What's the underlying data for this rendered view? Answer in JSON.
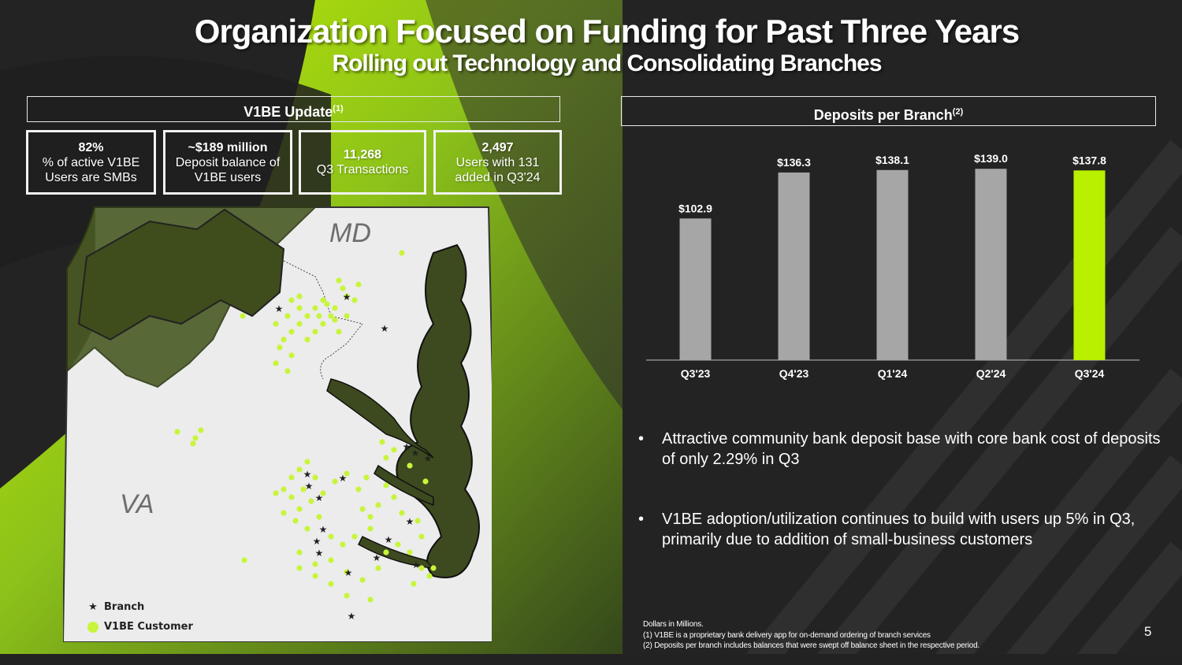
{
  "title": "Organization Focused on Funding for Past Three Years",
  "subtitle": "Rolling out Technology and Consolidating Branches",
  "left_header": {
    "label": "V1BE Update",
    "sup": "(1)"
  },
  "right_header": {
    "label": "Deposits per Branch",
    "sup": "(2)"
  },
  "stats": [
    {
      "value": "82%",
      "line1": "% of active V1BE",
      "line2": "Users are SMBs"
    },
    {
      "value": "~$189 million",
      "line1": "Deposit balance of",
      "line2": "V1BE users"
    },
    {
      "value": "11,268",
      "line1": "Q3 Transactions",
      "line2": ""
    },
    {
      "value": "2,497",
      "line1": "Users with 131",
      "line2": "added in Q3'24"
    }
  ],
  "map": {
    "labels": {
      "md": "MD",
      "va": "VA"
    },
    "legend": {
      "branch": "Branch",
      "customer": "V1BE Customer"
    }
  },
  "chart_data": {
    "type": "bar",
    "title": "Deposits per Branch",
    "categories": [
      "Q3'23",
      "Q4'23",
      "Q1'24",
      "Q2'24",
      "Q3'24"
    ],
    "values": [
      102.9,
      136.3,
      138.1,
      139.0,
      137.8
    ],
    "data_labels": [
      "$102.9",
      "$136.3",
      "$138.1",
      "$139.0",
      "$137.8"
    ],
    "units": "Dollars in Millions",
    "ylim": [
      0,
      150
    ],
    "grid": false,
    "colors": [
      "#a6a6a6",
      "#a6a6a6",
      "#a6a6a6",
      "#a6a6a6",
      "#b8f000"
    ]
  },
  "bullets": [
    "Attractive community bank deposit base with core bank cost of deposits of only 2.29% in Q3",
    "V1BE adoption/utilization continues to build with users up 5% in Q3, primarily due to addition of small-business customers"
  ],
  "footnotes": [
    "Dollars in Millions.",
    "(1)  V1BE  is a proprietary bank delivery app for on-demand ordering of branch services",
    "(2) Deposits per branch includes balances that were swept off balance sheet in the respective period."
  ],
  "page_number": "5",
  "colors": {
    "accent": "#b8f000",
    "background": "#252525",
    "bar": "#a6a6a6",
    "map_fill": "#ececec",
    "water": "#3d4a1f"
  }
}
